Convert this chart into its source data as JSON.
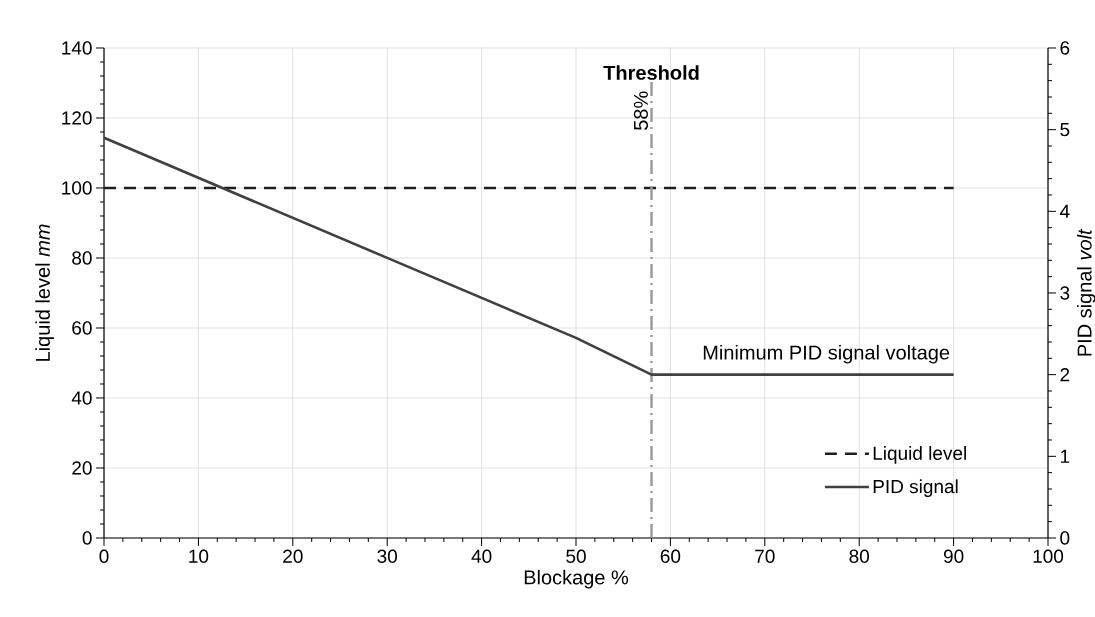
{
  "chart_data": {
    "type": "line",
    "xlabel": "Blockage %",
    "ylabel": "Liquid level *mm*",
    "y2label": "PID signal *volt*",
    "xlim": [
      0,
      100
    ],
    "xticks": [
      0,
      10,
      20,
      30,
      40,
      50,
      60,
      70,
      80,
      90,
      100
    ],
    "ylim": [
      0,
      140
    ],
    "yticks": [
      0,
      20,
      40,
      60,
      80,
      100,
      120,
      140
    ],
    "y2lim": [
      0,
      6
    ],
    "y2ticks": [
      0,
      1,
      2,
      3,
      4,
      5,
      6
    ],
    "series": [
      {
        "name": "Liquid level",
        "color": "#1f1f1f",
        "line_style": "dashed",
        "x": [
          0,
          90
        ],
        "values": [
          100,
          100
        ]
      },
      {
        "name": "PID signal",
        "color": "#404040",
        "line_style": "solid",
        "axis": "y2",
        "x": [
          0,
          30,
          50,
          58,
          90
        ],
        "values": [
          4.9,
          3.43,
          2.45,
          2.0,
          2.0
        ]
      }
    ],
    "ref_lines": [
      {
        "axis": "x",
        "value": 58,
        "label": "58%",
        "color": "#999999",
        "line_style": "dashdot"
      }
    ],
    "annotations": [
      {
        "text": "Threshold",
        "x": 58,
        "y": 133
      },
      "Minimum PID signal voltage"
    ],
    "grid": true,
    "legend": "bottom right",
    "marker": "none"
  }
}
